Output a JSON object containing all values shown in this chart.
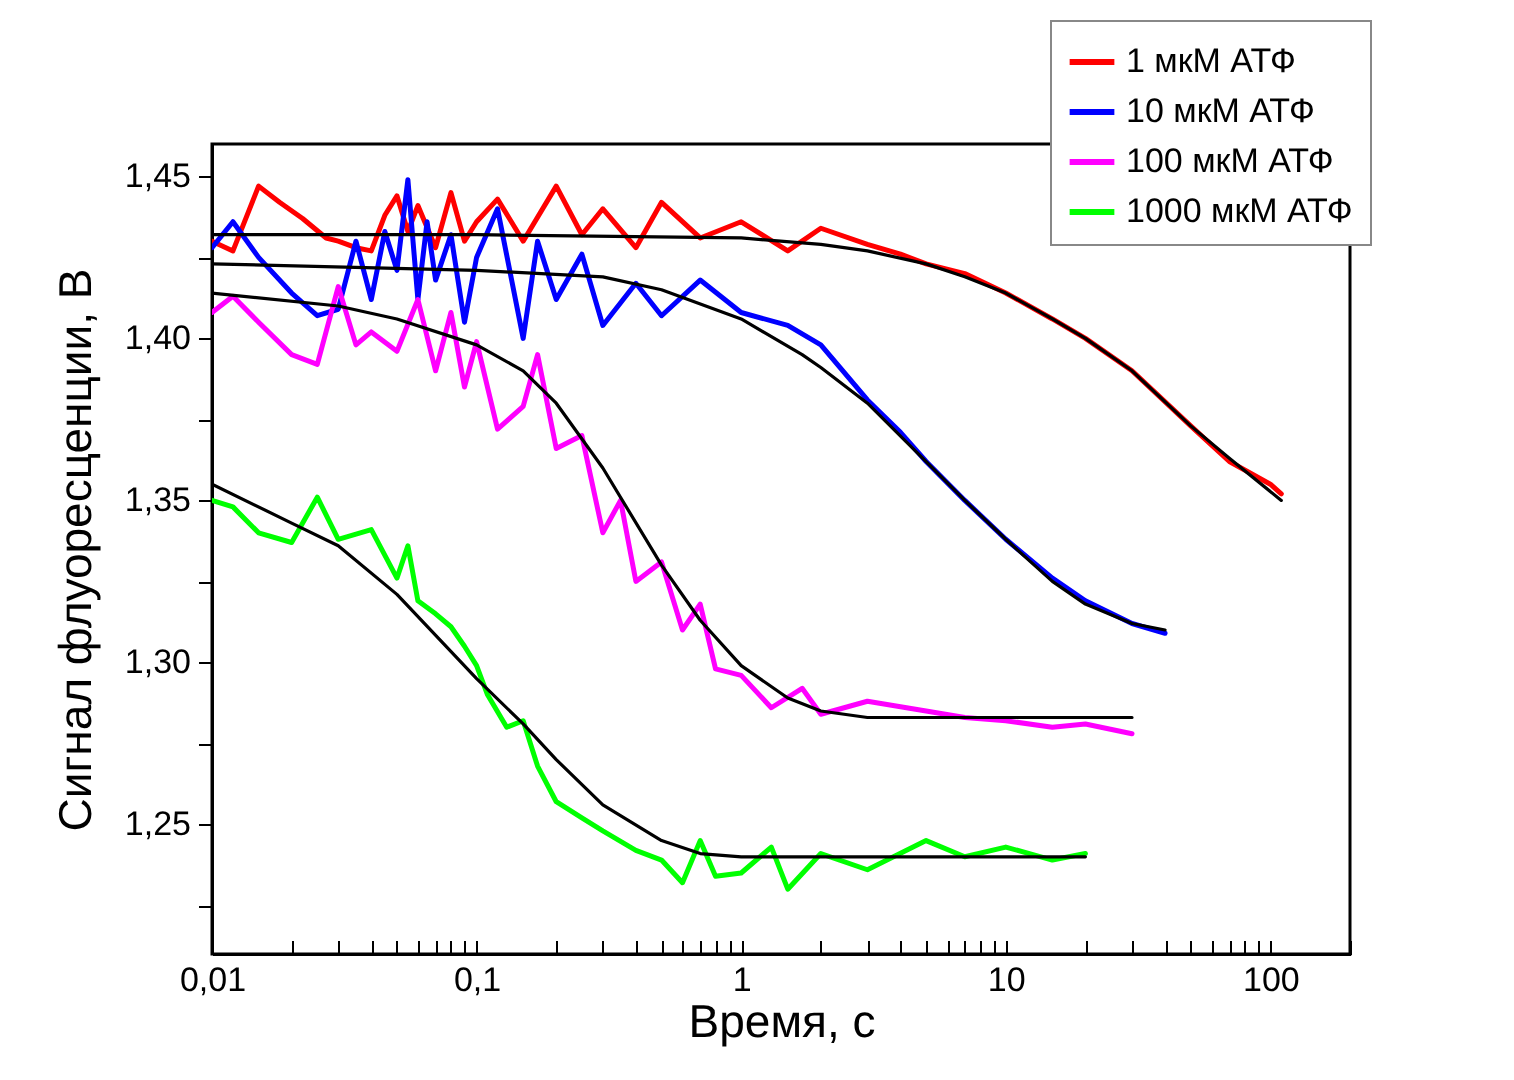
{
  "chart_data": {
    "type": "line",
    "xlabel": "Время, с",
    "ylabel": "Сигнал флуоресценции, В",
    "log": "x",
    "grid": false,
    "legend": "top right",
    "marker": "none",
    "line_style": "solid",
    "xlim": [
      0.01,
      200
    ],
    "ylim": [
      1.21,
      1.46
    ],
    "xticks": [
      {
        "value": 0.01,
        "label": "0,01"
      },
      {
        "value": 0.02,
        "label": null
      },
      {
        "value": 0.03,
        "label": null
      },
      {
        "value": 0.04,
        "label": null
      },
      {
        "value": 0.05,
        "label": null
      },
      {
        "value": 0.06,
        "label": null
      },
      {
        "value": 0.07,
        "label": null
      },
      {
        "value": 0.08,
        "label": null
      },
      {
        "value": 0.09,
        "label": null
      },
      {
        "value": 0.1,
        "label": "0,1"
      },
      {
        "value": 0.2,
        "label": null
      },
      {
        "value": 0.3,
        "label": null
      },
      {
        "value": 0.4,
        "label": null
      },
      {
        "value": 0.5,
        "label": null
      },
      {
        "value": 0.6,
        "label": null
      },
      {
        "value": 0.7,
        "label": null
      },
      {
        "value": 0.8,
        "label": null
      },
      {
        "value": 0.9,
        "label": null
      },
      1,
      {
        "value": 2,
        "label": null
      },
      {
        "value": 3,
        "label": null
      },
      {
        "value": 4,
        "label": null
      },
      {
        "value": 5,
        "label": null
      },
      {
        "value": 6,
        "label": null
      },
      {
        "value": 7,
        "label": null
      },
      {
        "value": 8,
        "label": null
      },
      {
        "value": 9,
        "label": null
      },
      10,
      {
        "value": 20,
        "label": null
      },
      {
        "value": 30,
        "label": null
      },
      {
        "value": 40,
        "label": null
      },
      {
        "value": 50,
        "label": null
      },
      {
        "value": 60,
        "label": null
      },
      {
        "value": 70,
        "label": null
      },
      {
        "value": 80,
        "label": null
      },
      {
        "value": 90,
        "label": null
      },
      100,
      {
        "value": 200,
        "label": null
      }
    ],
    "yticks": [
      {
        "value": 1.225,
        "label": null
      },
      {
        "value": 1.25,
        "label": "1,25"
      },
      {
        "value": 1.275,
        "label": null
      },
      {
        "value": 1.3,
        "label": "1,30"
      },
      {
        "value": 1.325,
        "label": null
      },
      {
        "value": 1.35,
        "label": "1,35"
      },
      {
        "value": 1.375,
        "label": null
      },
      {
        "value": 1.4,
        "label": "1,40"
      },
      {
        "value": 1.425,
        "label": null
      },
      {
        "value": 1.45,
        "label": "1,45"
      }
    ],
    "series": [
      {
        "name": "1 мкМ АТФ",
        "color": "#ff0000",
        "x": [
          0.01,
          0.012,
          0.015,
          0.018,
          0.022,
          0.027,
          0.03,
          0.035,
          0.04,
          0.045,
          0.05,
          0.055,
          0.06,
          0.07,
          0.08,
          0.09,
          0.1,
          0.12,
          0.15,
          0.2,
          0.25,
          0.3,
          0.4,
          0.5,
          0.7,
          1,
          1.5,
          2,
          3,
          4,
          5,
          7,
          10,
          15,
          20,
          30,
          50,
          70,
          100,
          110
        ],
        "values": [
          1.43,
          1.427,
          1.447,
          1.442,
          1.437,
          1.431,
          1.43,
          1.428,
          1.427,
          1.438,
          1.444,
          1.433,
          1.441,
          1.428,
          1.445,
          1.43,
          1.436,
          1.443,
          1.43,
          1.447,
          1.432,
          1.44,
          1.428,
          1.442,
          1.431,
          1.436,
          1.427,
          1.434,
          1.429,
          1.426,
          1.423,
          1.42,
          1.414,
          1.406,
          1.4,
          1.39,
          1.373,
          1.362,
          1.355,
          1.352
        ]
      },
      {
        "name": "10 мкМ АТФ",
        "color": "#0000ff",
        "x": [
          0.01,
          0.012,
          0.015,
          0.02,
          0.025,
          0.03,
          0.035,
          0.04,
          0.045,
          0.05,
          0.055,
          0.06,
          0.065,
          0.07,
          0.08,
          0.09,
          0.1,
          0.12,
          0.15,
          0.17,
          0.2,
          0.25,
          0.3,
          0.4,
          0.5,
          0.7,
          1,
          1.5,
          2,
          3,
          4,
          5,
          7,
          10,
          15,
          20,
          30,
          40
        ],
        "values": [
          1.428,
          1.436,
          1.425,
          1.414,
          1.407,
          1.409,
          1.43,
          1.412,
          1.433,
          1.421,
          1.449,
          1.412,
          1.436,
          1.418,
          1.432,
          1.405,
          1.425,
          1.44,
          1.4,
          1.43,
          1.412,
          1.426,
          1.404,
          1.417,
          1.407,
          1.418,
          1.408,
          1.404,
          1.398,
          1.381,
          1.371,
          1.362,
          1.35,
          1.338,
          1.326,
          1.319,
          1.312,
          1.309
        ]
      },
      {
        "name": "100 мкМ АТФ",
        "color": "#ff00ff",
        "x": [
          0.01,
          0.012,
          0.015,
          0.02,
          0.025,
          0.03,
          0.035,
          0.04,
          0.05,
          0.06,
          0.07,
          0.08,
          0.09,
          0.1,
          0.12,
          0.15,
          0.17,
          0.2,
          0.25,
          0.3,
          0.35,
          0.4,
          0.5,
          0.6,
          0.7,
          0.8,
          1,
          1.3,
          1.7,
          2,
          3,
          5,
          7,
          10,
          15,
          20,
          30
        ],
        "values": [
          1.408,
          1.413,
          1.405,
          1.395,
          1.392,
          1.416,
          1.398,
          1.402,
          1.396,
          1.412,
          1.39,
          1.408,
          1.385,
          1.399,
          1.372,
          1.379,
          1.395,
          1.366,
          1.37,
          1.34,
          1.35,
          1.325,
          1.331,
          1.31,
          1.318,
          1.298,
          1.296,
          1.286,
          1.292,
          1.284,
          1.288,
          1.285,
          1.283,
          1.282,
          1.28,
          1.281,
          1.278
        ]
      },
      {
        "name": "1000 мкМ АТФ",
        "color": "#00ff00",
        "x": [
          0.01,
          0.012,
          0.015,
          0.02,
          0.025,
          0.03,
          0.04,
          0.05,
          0.055,
          0.06,
          0.07,
          0.08,
          0.09,
          0.1,
          0.11,
          0.13,
          0.15,
          0.17,
          0.2,
          0.25,
          0.3,
          0.4,
          0.5,
          0.6,
          0.7,
          0.8,
          1,
          1.3,
          1.5,
          2,
          3,
          5,
          7,
          10,
          15,
          20
        ],
        "values": [
          1.35,
          1.348,
          1.34,
          1.337,
          1.351,
          1.338,
          1.341,
          1.326,
          1.336,
          1.319,
          1.315,
          1.311,
          1.305,
          1.299,
          1.29,
          1.28,
          1.282,
          1.268,
          1.257,
          1.252,
          1.248,
          1.242,
          1.239,
          1.232,
          1.245,
          1.234,
          1.235,
          1.243,
          1.23,
          1.241,
          1.236,
          1.245,
          1.24,
          1.243,
          1.239,
          1.241
        ]
      },
      {
        "color": "#000000",
        "x": [
          0.01,
          0.1,
          1,
          2,
          3,
          5,
          7,
          10,
          15,
          20,
          30,
          50,
          70,
          110
        ],
        "values": [
          1.432,
          1.432,
          1.431,
          1.429,
          1.427,
          1.423,
          1.419,
          1.414,
          1.406,
          1.4,
          1.39,
          1.373,
          1.363,
          1.35
        ]
      },
      {
        "color": "#000000",
        "x": [
          0.01,
          0.1,
          0.3,
          0.5,
          1,
          1.7,
          2,
          3,
          5,
          7,
          10,
          15,
          20,
          30,
          40
        ],
        "values": [
          1.423,
          1.421,
          1.419,
          1.415,
          1.406,
          1.395,
          1.391,
          1.38,
          1.362,
          1.35,
          1.338,
          1.325,
          1.318,
          1.312,
          1.31
        ]
      },
      {
        "color": "#000000",
        "x": [
          0.01,
          0.03,
          0.05,
          0.1,
          0.15,
          0.2,
          0.3,
          0.5,
          0.7,
          1,
          1.5,
          2,
          3,
          5,
          30
        ],
        "values": [
          1.414,
          1.41,
          1.406,
          1.398,
          1.39,
          1.38,
          1.36,
          1.33,
          1.313,
          1.299,
          1.289,
          1.285,
          1.283,
          1.283,
          1.283
        ]
      },
      {
        "color": "#000000",
        "x": [
          0.01,
          0.02,
          0.03,
          0.05,
          0.1,
          0.15,
          0.2,
          0.3,
          0.5,
          0.7,
          1,
          2,
          20
        ],
        "values": [
          1.355,
          1.343,
          1.336,
          1.321,
          1.295,
          1.281,
          1.27,
          1.256,
          1.245,
          1.241,
          1.24,
          1.24,
          1.24
        ]
      }
    ]
  }
}
